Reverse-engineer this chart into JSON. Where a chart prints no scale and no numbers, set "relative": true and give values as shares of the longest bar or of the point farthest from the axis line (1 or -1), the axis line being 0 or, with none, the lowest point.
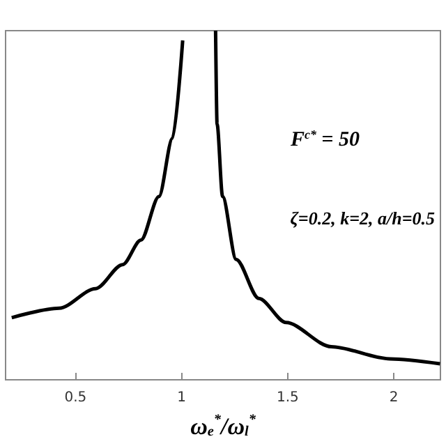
{
  "chart_data": {
    "type": "line",
    "relative": true,
    "xlabel": "ω$_{e}$$^{*}$/ω$_{l}$$^{*}$",
    "annotations": [
      "F$^{c*}$ = 50",
      "ζ=0.2, k=2, a/h=0.5"
    ],
    "x": [
      0.199,
      0.423,
      0.594,
      0.722,
      0.808,
      0.893,
      0.957,
      1.005,
      1.08,
      1.16,
      1.167,
      1.193,
      1.257,
      1.364,
      1.492,
      1.705,
      1.983,
      2.218
    ],
    "series": [
      {
        "color": "#000000",
        "values": [
          0.178,
          0.205,
          0.261,
          0.33,
          0.4,
          0.525,
          0.692,
          0.972,
          null,
          1.0,
          0.733,
          0.525,
          0.345,
          0.233,
          0.164,
          0.095,
          0.06,
          0.046
        ]
      }
    ],
    "xlim": [
      0.17,
      2.22
    ],
    "xticks": [
      0.5,
      1,
      1.5,
      2
    ],
    "grid": false,
    "marker": "none",
    "line_style": "solid"
  }
}
